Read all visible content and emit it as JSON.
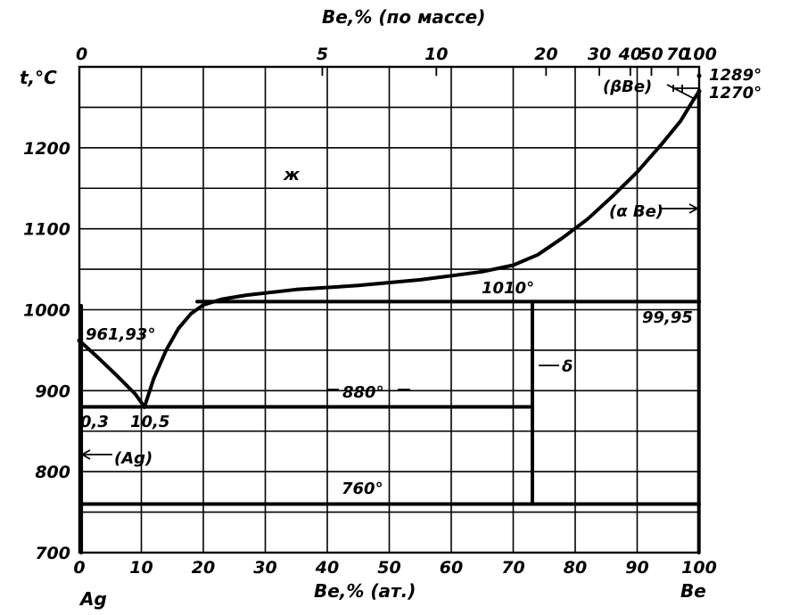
{
  "chart_data": {
    "type": "line",
    "title": "",
    "x": {
      "label": "Be,% (ат.)",
      "range": [
        0,
        100
      ],
      "ticks": [
        0,
        10,
        20,
        30,
        40,
        50,
        60,
        70,
        80,
        90,
        100
      ],
      "end_labels": {
        "left": "Ag",
        "right": "Be"
      }
    },
    "x2": {
      "label": "Be,% (по массе)",
      "ticks": [
        {
          "label": "0",
          "at": 0
        },
        {
          "label": "5",
          "at": 39.2
        },
        {
          "label": "10",
          "at": 57.6
        },
        {
          "label": "20",
          "at": 75.3
        },
        {
          "label": "30",
          "at": 83.9
        },
        {
          "label": "40",
          "at": 88.9
        },
        {
          "label": "50",
          "at": 92.3
        },
        {
          "label": "70",
          "at": 96.6
        },
        {
          "label": "100",
          "at": 100
        }
      ],
      "top_labels": [
        "0",
        "5",
        "10",
        "20",
        "30",
        "40",
        "50",
        "70",
        "100"
      ]
    },
    "y": {
      "label": "t,°C",
      "range": [
        700,
        1300
      ],
      "ticks": [
        700,
        800,
        900,
        1000,
        1100,
        1200
      ]
    },
    "grid": true,
    "series": [
      {
        "curve": "liquidus-ag",
        "points": [
          [
            0,
            961.93
          ],
          [
            3,
            941
          ],
          [
            6,
            919
          ],
          [
            9,
            896
          ],
          [
            10.5,
            880
          ]
        ]
      },
      {
        "curve": "liquidus-mid",
        "points": [
          [
            10.5,
            880
          ],
          [
            12,
            915
          ],
          [
            14,
            950
          ],
          [
            16,
            977
          ],
          [
            18,
            995
          ],
          [
            20,
            1006
          ],
          [
            23,
            1013
          ],
          [
            27,
            1018
          ],
          [
            35,
            1025
          ],
          [
            45,
            1030
          ],
          [
            55,
            1037
          ],
          [
            65,
            1047
          ],
          [
            70,
            1055
          ],
          [
            74,
            1068
          ],
          [
            78,
            1089
          ],
          [
            82,
            1112
          ],
          [
            86,
            1140
          ],
          [
            90,
            1170
          ],
          [
            94,
            1205
          ],
          [
            97,
            1233
          ],
          [
            99,
            1258
          ],
          [
            100,
            1270
          ]
        ]
      },
      {
        "curve": "solvus-ag",
        "points": [
          [
            0.3,
            1005
          ],
          [
            0.3,
            700
          ]
        ]
      },
      {
        "curve": "delta",
        "points": [
          [
            73.1,
            1010
          ],
          [
            73.1,
            760
          ]
        ]
      },
      {
        "curve": "be-solvus",
        "points": [
          [
            99.95,
            1270
          ],
          [
            99.95,
            700
          ]
        ]
      }
    ],
    "isotherms": [
      {
        "t": 1010,
        "from": 19,
        "to": 100
      },
      {
        "t": 880,
        "from": 0.3,
        "to": 73.1
      },
      {
        "t": 760,
        "from": 0.3,
        "to": 100
      }
    ],
    "points": [
      {
        "label": "961,93°",
        "x": 0,
        "t": 961.93
      },
      {
        "label": "10,5",
        "x": 10.5,
        "t": 880
      },
      {
        "label": "0,3",
        "x": 0.3,
        "t": 880
      },
      {
        "label": "1289°",
        "x": 100,
        "t": 1289
      },
      {
        "label": "1270°",
        "x": 100,
        "t": 1270
      },
      {
        "label": "99,95",
        "x": 99.95,
        "t": 1010
      }
    ],
    "annotations": {
      "temp_880": "880°",
      "temp_1010": "1010°",
      "temp_760": "760°",
      "temp_1289": "1289°",
      "temp_1270": "1270°",
      "temp_961": "961,93°",
      "comp_10_5": "10,5",
      "comp_0_3": "0,3",
      "comp_99_95": "99,95",
      "liquid": "ж",
      "delta": "δ",
      "ag_phase": "(Ag)",
      "alpha_be": "(α Be)",
      "beta_be": "(βBe)"
    }
  }
}
